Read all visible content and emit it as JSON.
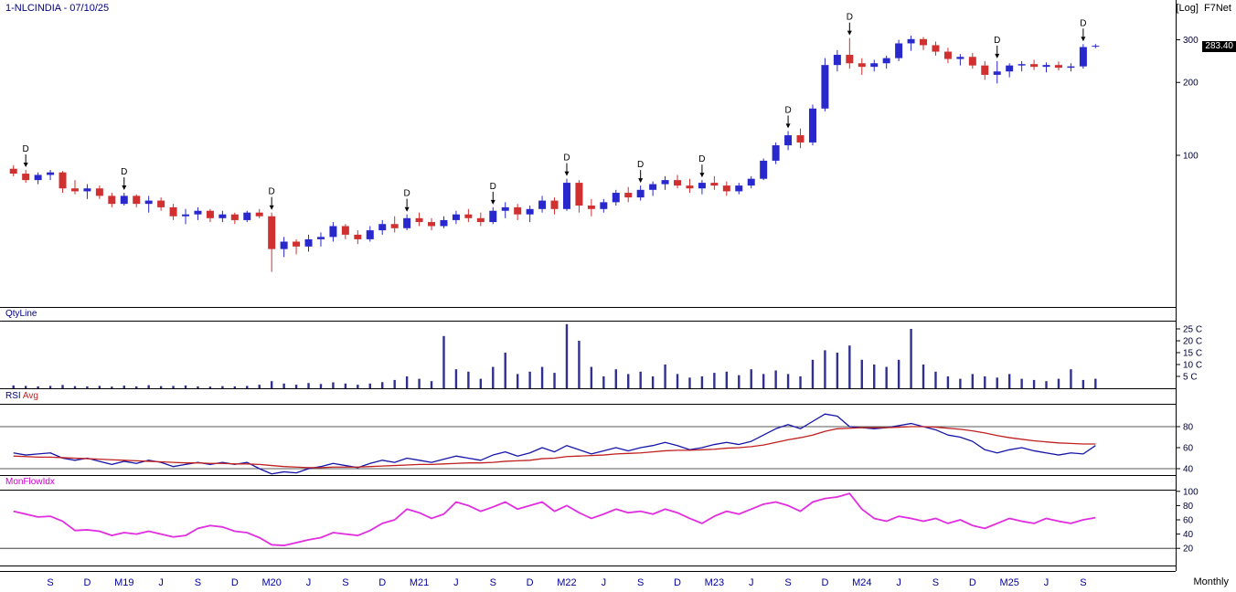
{
  "header": {
    "title": "1-NLCINDIA - 07/10/25",
    "scale_mode": "[Log]",
    "app_name": "F7Net",
    "last_price": "283.40"
  },
  "footer": {
    "periodicity": "Monthly"
  },
  "panels": {
    "volume": {
      "label": "QtyLine"
    },
    "rsi": {
      "label": "RSI",
      "avg_label": "Avg"
    },
    "mfi": {
      "label": "MonFlowIdx"
    }
  },
  "colors": {
    "up": "#2828cc",
    "down": "#d03030",
    "volume_bar": "#303090",
    "rsi_line": "#1616a8",
    "rsi_avg_line": "#c02020",
    "mfi_line": "#e02ee0",
    "axis_line": "#000000",
    "scale_text": "#00003c",
    "x_label": "#0000a0",
    "marker": "#000000"
  },
  "chart_data": {
    "type": "candlestick+indicators",
    "symbol": "NLCINDIA",
    "as_of_date": "07/10/25",
    "price_scale": "log",
    "periodicity": "Monthly",
    "last_close": 283.4,
    "price_axis_ticks": [
      {
        "v": 300,
        "t": "300"
      },
      {
        "v": 200,
        "t": "200"
      },
      {
        "v": 100,
        "t": "100"
      }
    ],
    "volume_axis_ticks": [
      {
        "v": 25,
        "t": "25 C"
      },
      {
        "v": 20,
        "t": "20 C"
      },
      {
        "v": 15,
        "t": "15 C"
      },
      {
        "v": 10,
        "t": "10 C"
      },
      {
        "v": 5,
        "t": "5 C"
      }
    ],
    "rsi_axis_ticks": [
      {
        "v": 80,
        "t": "80"
      },
      {
        "v": 60,
        "t": "60"
      },
      {
        "v": 40,
        "t": "40"
      }
    ],
    "rsi_level_lines": [
      80,
      40
    ],
    "mfi_axis_ticks": [
      {
        "v": 100,
        "t": "100"
      },
      {
        "v": 80,
        "t": "80"
      },
      {
        "v": 60,
        "t": "60"
      },
      {
        "v": 40,
        "t": "40"
      },
      {
        "v": 20,
        "t": "20"
      }
    ],
    "mfi_level_lines": [
      20
    ],
    "x_labels": [
      {
        "i": 3,
        "t": "S"
      },
      {
        "i": 6,
        "t": "D"
      },
      {
        "i": 9,
        "t": "M19"
      },
      {
        "i": 12,
        "t": "J"
      },
      {
        "i": 15,
        "t": "S"
      },
      {
        "i": 18,
        "t": "D"
      },
      {
        "i": 21,
        "t": "M20"
      },
      {
        "i": 24,
        "t": "J"
      },
      {
        "i": 27,
        "t": "S"
      },
      {
        "i": 30,
        "t": "D"
      },
      {
        "i": 33,
        "t": "M21"
      },
      {
        "i": 36,
        "t": "J"
      },
      {
        "i": 39,
        "t": "S"
      },
      {
        "i": 42,
        "t": "D"
      },
      {
        "i": 45,
        "t": "M22"
      },
      {
        "i": 48,
        "t": "J"
      },
      {
        "i": 51,
        "t": "S"
      },
      {
        "i": 54,
        "t": "D"
      },
      {
        "i": 57,
        "t": "M23"
      },
      {
        "i": 60,
        "t": "J"
      },
      {
        "i": 63,
        "t": "S"
      },
      {
        "i": 66,
        "t": "D"
      },
      {
        "i": 69,
        "t": "M24"
      },
      {
        "i": 72,
        "t": "J"
      },
      {
        "i": 75,
        "t": "S"
      },
      {
        "i": 78,
        "t": "D"
      },
      {
        "i": 81,
        "t": "M25"
      },
      {
        "i": 84,
        "t": "J"
      },
      {
        "i": 87,
        "t": "S"
      }
    ],
    "dividend_marker": "D",
    "dividend_indices": [
      1,
      9,
      21,
      32,
      39,
      45,
      51,
      56,
      63,
      68,
      80,
      87
    ],
    "candles_ohlc": [
      [
        88,
        91,
        82,
        84
      ],
      [
        84,
        87,
        77,
        79
      ],
      [
        79,
        85,
        76,
        83
      ],
      [
        83,
        87,
        79,
        85
      ],
      [
        85,
        86,
        70,
        73
      ],
      [
        73,
        79,
        69,
        71
      ],
      [
        71,
        76,
        66,
        73
      ],
      [
        73,
        75,
        66,
        68
      ],
      [
        68,
        70,
        61,
        63
      ],
      [
        63,
        70,
        62,
        68
      ],
      [
        68,
        69,
        61,
        63
      ],
      [
        63,
        68,
        58,
        65
      ],
      [
        65,
        67,
        59,
        61
      ],
      [
        61,
        63,
        54,
        56
      ],
      [
        56,
        60,
        52,
        57
      ],
      [
        57,
        61,
        54,
        59
      ],
      [
        59,
        60,
        53,
        55
      ],
      [
        55,
        59,
        53,
        57
      ],
      [
        57,
        58,
        52,
        54
      ],
      [
        54,
        59,
        53,
        58
      ],
      [
        58,
        60,
        55,
        56
      ],
      [
        56,
        58,
        33,
        41
      ],
      [
        41,
        46,
        38,
        44
      ],
      [
        44,
        45,
        39,
        42
      ],
      [
        42,
        47,
        40,
        45
      ],
      [
        45,
        48,
        42,
        46
      ],
      [
        46,
        53,
        44,
        51
      ],
      [
        51,
        52,
        45,
        47
      ],
      [
        47,
        49,
        43,
        45
      ],
      [
        45,
        51,
        44,
        49
      ],
      [
        49,
        54,
        47,
        52
      ],
      [
        52,
        56,
        48,
        50
      ],
      [
        50,
        57,
        49,
        55
      ],
      [
        55,
        58,
        51,
        53
      ],
      [
        53,
        55,
        49,
        51
      ],
      [
        51,
        56,
        50,
        54
      ],
      [
        54,
        59,
        52,
        57
      ],
      [
        57,
        60,
        53,
        55
      ],
      [
        55,
        58,
        51,
        53
      ],
      [
        53,
        61,
        52,
        59
      ],
      [
        59,
        64,
        55,
        61
      ],
      [
        61,
        63,
        54,
        57
      ],
      [
        57,
        62,
        53,
        60
      ],
      [
        60,
        68,
        58,
        65
      ],
      [
        65,
        67,
        57,
        60
      ],
      [
        60,
        80,
        59,
        77
      ],
      [
        77,
        79,
        58,
        62
      ],
      [
        62,
        66,
        56,
        60
      ],
      [
        60,
        66,
        58,
        64
      ],
      [
        64,
        72,
        62,
        70
      ],
      [
        70,
        74,
        64,
        67
      ],
      [
        67,
        75,
        65,
        72
      ],
      [
        72,
        78,
        68,
        76
      ],
      [
        76,
        82,
        72,
        79
      ],
      [
        79,
        83,
        73,
        75
      ],
      [
        75,
        80,
        70,
        73
      ],
      [
        73,
        79,
        69,
        77
      ],
      [
        77,
        82,
        72,
        75
      ],
      [
        75,
        78,
        68,
        71
      ],
      [
        71,
        77,
        69,
        75
      ],
      [
        75,
        82,
        73,
        80
      ],
      [
        80,
        97,
        79,
        95
      ],
      [
        95,
        113,
        92,
        110
      ],
      [
        110,
        126,
        105,
        121
      ],
      [
        121,
        129,
        107,
        113
      ],
      [
        113,
        162,
        110,
        156
      ],
      [
        156,
        252,
        152,
        236
      ],
      [
        236,
        272,
        222,
        260
      ],
      [
        260,
        305,
        228,
        240
      ],
      [
        240,
        252,
        215,
        232
      ],
      [
        232,
        248,
        222,
        240
      ],
      [
        240,
        258,
        228,
        252
      ],
      [
        252,
        300,
        245,
        290
      ],
      [
        290,
        312,
        270,
        302
      ],
      [
        302,
        308,
        272,
        285
      ],
      [
        285,
        295,
        258,
        268
      ],
      [
        268,
        278,
        240,
        250
      ],
      [
        250,
        262,
        235,
        255
      ],
      [
        255,
        265,
        228,
        235
      ],
      [
        235,
        245,
        205,
        215
      ],
      [
        215,
        245,
        198,
        222
      ],
      [
        222,
        240,
        210,
        235
      ],
      [
        235,
        245,
        222,
        238
      ],
      [
        238,
        248,
        225,
        232
      ],
      [
        232,
        242,
        220,
        236
      ],
      [
        236,
        244,
        224,
        230
      ],
      [
        230,
        240,
        222,
        233
      ],
      [
        233,
        288,
        228,
        280
      ],
      [
        281,
        288,
        277,
        283.4
      ]
    ],
    "volume_crore": [
      1.2,
      1.0,
      0.8,
      1.0,
      1.4,
      0.9,
      0.8,
      1.0,
      0.7,
      1.1,
      0.8,
      1.3,
      0.9,
      1.0,
      1.2,
      0.8,
      0.7,
      0.9,
      0.8,
      1.0,
      1.5,
      3.0,
      2.0,
      1.5,
      2.2,
      1.8,
      2.5,
      2.0,
      1.5,
      2.0,
      2.6,
      3.5,
      5.0,
      4.0,
      3.0,
      22.0,
      8.0,
      7.0,
      4.0,
      9.0,
      15.0,
      6.0,
      7.0,
      9.0,
      6.5,
      27.0,
      20.0,
      9.0,
      5.0,
      8.0,
      6.0,
      7.0,
      5.0,
      10.0,
      6.0,
      4.5,
      5.0,
      6.5,
      7.0,
      5.5,
      8.0,
      6.0,
      7.5,
      6.0,
      5.0,
      12.0,
      16.0,
      15.0,
      18.0,
      12.0,
      10.0,
      9.0,
      12.0,
      25.0,
      10.0,
      7.0,
      5.0,
      4.0,
      6.0,
      5.0,
      4.5,
      6.0,
      4.0,
      3.5,
      3.0,
      4.0,
      8.0,
      3.5,
      4.0
    ],
    "rsi": [
      55,
      53,
      54,
      55,
      50,
      48,
      50,
      47,
      44,
      47,
      45,
      48,
      46,
      42,
      44,
      46,
      44,
      46,
      44,
      46,
      40,
      35,
      37,
      36,
      40,
      42,
      45,
      43,
      41,
      45,
      48,
      46,
      50,
      48,
      46,
      49,
      52,
      50,
      48,
      53,
      56,
      52,
      55,
      60,
      56,
      62,
      58,
      54,
      57,
      60,
      57,
      60,
      62,
      65,
      62,
      58,
      60,
      63,
      65,
      63,
      66,
      72,
      78,
      82,
      78,
      85,
      92,
      90,
      80,
      79,
      78,
      79,
      81,
      83,
      80,
      77,
      72,
      70,
      66,
      58,
      55,
      58,
      60,
      57,
      55,
      53,
      55,
      54,
      62
    ],
    "rsi_avg": [
      52,
      51.5,
      51,
      51,
      50.5,
      50,
      49.5,
      49,
      48.5,
      48,
      47.5,
      47,
      46.5,
      46,
      45.5,
      45.5,
      45,
      45,
      44.5,
      44.5,
      44,
      43,
      42,
      41.5,
      41,
      41,
      41.5,
      41.5,
      41.5,
      42,
      42.5,
      43,
      43.5,
      44,
      44,
      44.5,
      45,
      45.5,
      45.5,
      46,
      47,
      47.5,
      48,
      49.5,
      50,
      51.5,
      52,
      52.5,
      53,
      54,
      54.5,
      55,
      56,
      57,
      57.5,
      57.5,
      58,
      58.5,
      59.5,
      60,
      61,
      62.5,
      65,
      67.5,
      69.5,
      72,
      75.5,
      78,
      78.5,
      79,
      79,
      79,
      79.5,
      80,
      80,
      79.5,
      78.5,
      77.5,
      76,
      74,
      71.5,
      69.5,
      68,
      66.5,
      65.5,
      64.5,
      64,
      63.5,
      63.5
    ],
    "mfi": [
      72,
      68,
      64,
      65,
      58,
      45,
      46,
      44,
      38,
      42,
      40,
      44,
      40,
      36,
      38,
      48,
      52,
      50,
      44,
      42,
      35,
      25,
      24,
      28,
      32,
      35,
      42,
      40,
      38,
      45,
      55,
      60,
      75,
      70,
      62,
      68,
      85,
      80,
      72,
      78,
      85,
      75,
      80,
      85,
      72,
      80,
      70,
      62,
      68,
      75,
      70,
      72,
      68,
      75,
      70,
      62,
      55,
      65,
      72,
      68,
      75,
      82,
      85,
      80,
      72,
      85,
      90,
      92,
      97,
      75,
      62,
      58,
      65,
      62,
      58,
      62,
      55,
      60,
      52,
      48,
      55,
      62,
      58,
      55,
      62,
      58,
      55,
      60,
      63
    ]
  }
}
